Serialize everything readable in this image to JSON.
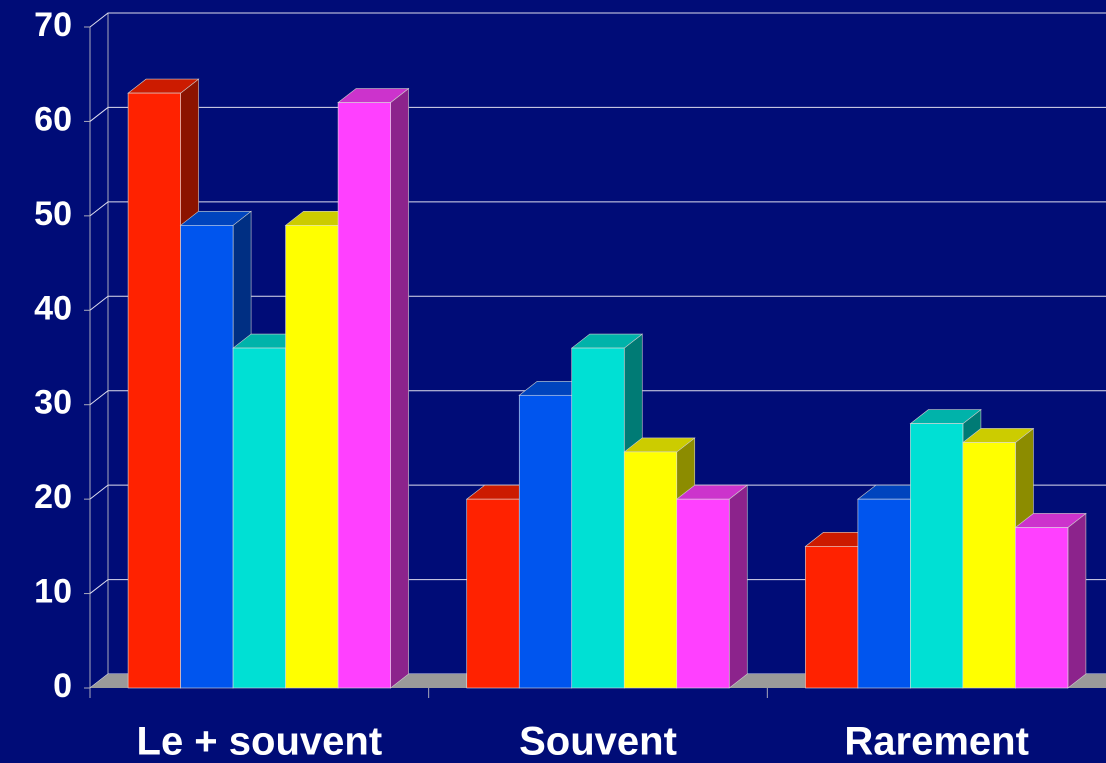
{
  "chart_data": {
    "type": "bar3d",
    "categories": [
      "Le + souvent",
      "Souvent",
      "Rarement"
    ],
    "series": [
      {
        "color": "#ff2200",
        "values": [
          63,
          20,
          15
        ]
      },
      {
        "color": "#0055ee",
        "values": [
          49,
          31,
          20
        ]
      },
      {
        "color": "#00e0d4",
        "values": [
          36,
          36,
          28
        ]
      },
      {
        "color": "#ffff00",
        "values": [
          49,
          25,
          26
        ]
      },
      {
        "color": "#ff40ff",
        "values": [
          62,
          20,
          17
        ]
      }
    ],
    "ylim": [
      0,
      70
    ],
    "yticks": [
      0,
      10,
      20,
      30,
      40,
      50,
      60,
      70
    ],
    "grid": true,
    "background": "#000c77"
  }
}
